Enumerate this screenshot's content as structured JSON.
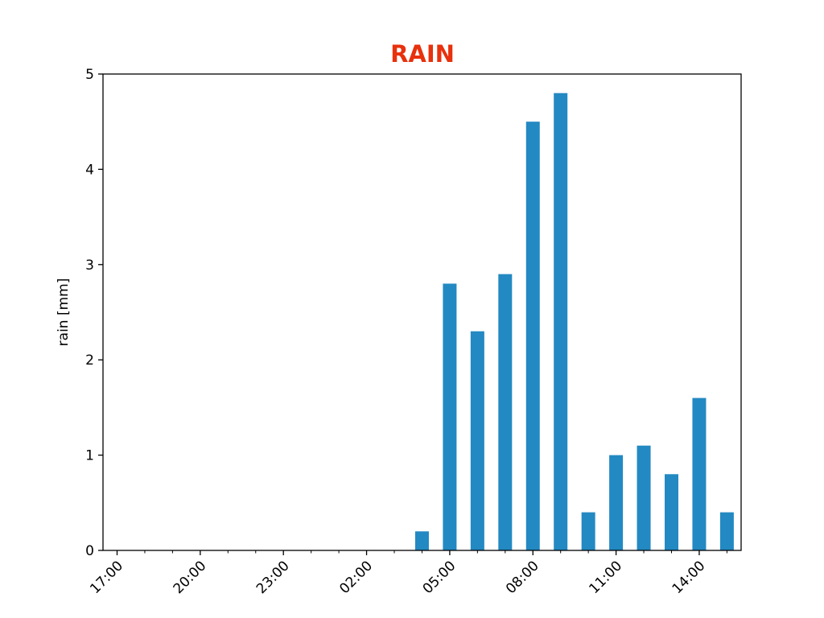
{
  "chart_data": {
    "type": "bar",
    "title": "RAIN",
    "title_color": "#e8310d",
    "bar_color": "#2389c2",
    "xlabel": "",
    "ylabel": "rain [mm]",
    "ylim": [
      0,
      5
    ],
    "yticks": [
      0,
      1,
      2,
      3,
      4,
      5
    ],
    "x": [
      "17:00",
      "18:00",
      "19:00",
      "20:00",
      "21:00",
      "22:00",
      "23:00",
      "00:00",
      "01:00",
      "02:00",
      "03:00",
      "04:00",
      "05:00",
      "06:00",
      "07:00",
      "08:00",
      "09:00",
      "10:00",
      "11:00",
      "12:00",
      "13:00",
      "14:00",
      "15:00"
    ],
    "values": [
      0,
      0,
      0,
      0,
      0,
      0,
      0,
      0,
      0,
      0,
      0,
      0.2,
      2.8,
      2.3,
      2.9,
      4.5,
      4.8,
      0.4,
      1.0,
      1.1,
      0.8,
      1.6,
      0.4
    ],
    "xtick_labels": [
      "17:00",
      "20:00",
      "23:00",
      "02:00",
      "05:00",
      "08:00",
      "11:00",
      "14:00"
    ],
    "grid": false,
    "legend": "none"
  }
}
